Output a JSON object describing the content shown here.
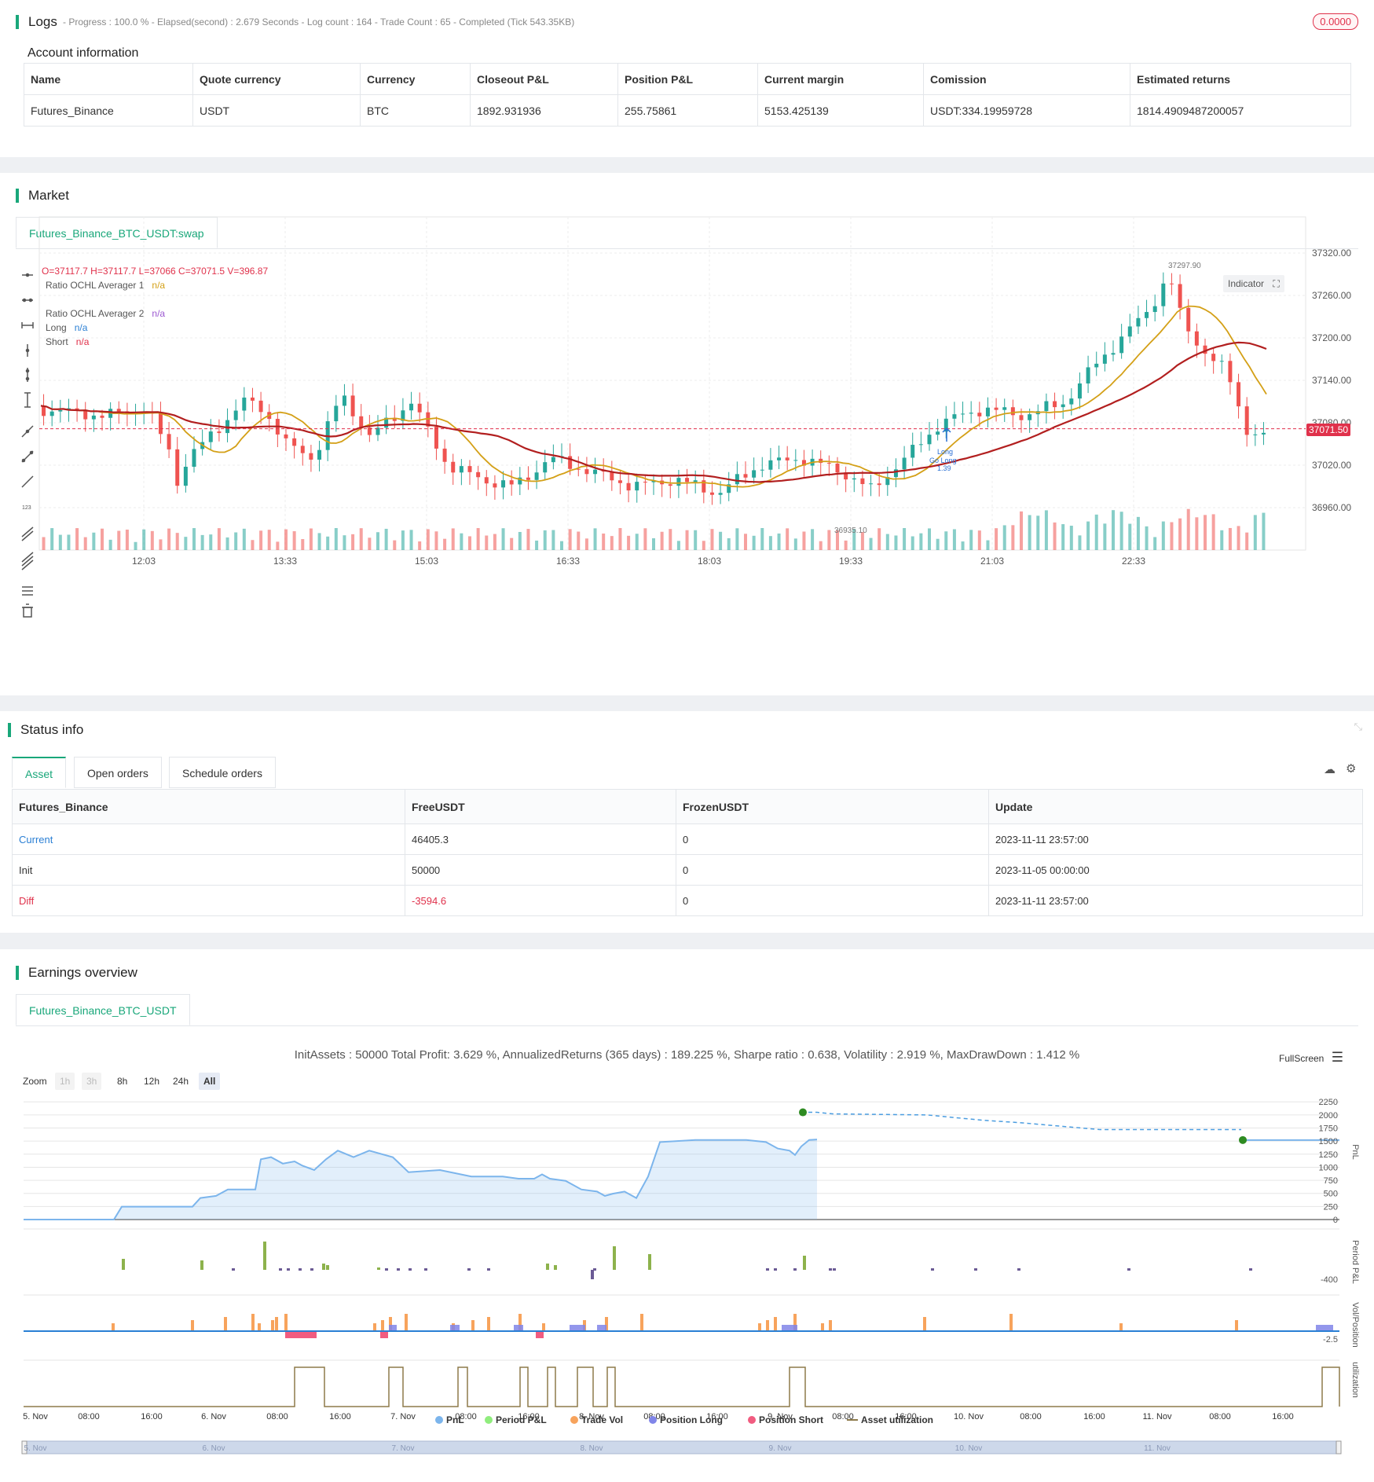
{
  "logs": {
    "title": "Logs",
    "summary": "- Progress : 100.0 % - Elapsed(second) : 2.679  Seconds - Log count : 164 - Trade Count : 65 - Completed (Tick 543.35KB)",
    "badge": "0.0000"
  },
  "account": {
    "title": "Account information",
    "headers": [
      "Name",
      "Quote currency",
      "Currency",
      "Closeout P&L",
      "Position P&L",
      "Current margin",
      "Comission",
      "Estimated returns"
    ],
    "row": [
      "Futures_Binance",
      "USDT",
      "BTC",
      "1892.931936",
      "255.75861",
      "5153.425139",
      "USDT:334.19959728",
      "1814.4909487200057"
    ]
  },
  "market": {
    "title": "Market",
    "tab": "Futures_Binance_BTC_USDT:swap",
    "ohlc": "O=37117.7 H=37117.7 L=37066 C=37071.5 V=396.87",
    "indicators": [
      {
        "name": "Ratio OCHL Averager 1",
        "value": "n/a",
        "color": "#d4a017"
      },
      {
        "name": "Ratio OCHL Averager 2",
        "value": "n/a",
        "color": "#9c59d1"
      },
      {
        "name": "Long",
        "value": "n/a",
        "color": "#2a7fd4"
      },
      {
        "name": "Short",
        "value": "n/a",
        "color": "#e0314b"
      }
    ],
    "indicator_btn": "Indicator",
    "price_label": "37071.50",
    "high_label": "37297.90",
    "low_label": "36935.10",
    "trade_marks": [
      "Long",
      "Go Long",
      "1.39"
    ],
    "y_ticks": [
      "37320.00",
      "37260.00",
      "37200.00",
      "37140.00",
      "37080.00",
      "37020.00",
      "36960.00"
    ],
    "x_ticks": [
      "12:03",
      "13:33",
      "15:03",
      "16:33",
      "18:03",
      "19:33",
      "21:03",
      "22:33"
    ],
    "colors": {
      "up": "#26a69a",
      "down": "#ef5350",
      "avg1": "#d4a017",
      "avg2": "#b21f1f"
    }
  },
  "status": {
    "title": "Status info",
    "tabs": [
      "Asset",
      "Open orders",
      "Schedule orders"
    ],
    "headers": [
      "Futures_Binance",
      "FreeUSDT",
      "FrozenUSDT",
      "Update"
    ],
    "rows": [
      [
        "Current",
        "46405.3",
        "0",
        "2023-11-11 23:57:00"
      ],
      [
        "Init",
        "50000",
        "0",
        "2023-11-05 00:00:00"
      ],
      [
        "Diff",
        "-3594.6",
        "0",
        "2023-11-11 23:57:00"
      ]
    ]
  },
  "earnings": {
    "title": "Earnings overview",
    "tab": "Futures_Binance_BTC_USDT",
    "summary": "InitAssets : 50000 Total Profit: 3.629 %, AnnualizedReturns (365 days) : 189.225 %, Sharpe ratio : 0.638, Volatility : 2.919 %, MaxDrawDown : 1.412 %",
    "fullscreen": "FullScreen",
    "zoom_label": "Zoom",
    "zoom_options": [
      "1h",
      "3h",
      "8h",
      "12h",
      "24h",
      "All"
    ],
    "pnl_ticks": [
      "2250",
      "2000",
      "1750",
      "1500",
      "1250",
      "1000",
      "750",
      "500",
      "250",
      "0"
    ],
    "period_tick": "-400",
    "vol_tick": "-2.5",
    "axis_titles": [
      "PnL",
      "Period P&L",
      "Vol/Position",
      "utilization"
    ],
    "x_ticks": [
      "5. Nov",
      "08:00",
      "16:00",
      "6. Nov",
      "08:00",
      "16:00",
      "7. Nov",
      "08:00",
      "16:00",
      "8. Nov",
      "08:00",
      "16:00",
      "9. Nov",
      "08:00",
      "16:00",
      "10. Nov",
      "08:00",
      "16:00",
      "11. Nov",
      "08:00",
      "16:00"
    ],
    "nav_ticks": [
      "5. Nov",
      "6. Nov",
      "7. Nov",
      "8. Nov",
      "9. Nov",
      "10. Nov",
      "11. Nov"
    ],
    "legend": [
      {
        "name": "PnL",
        "color": "#7cb5ec"
      },
      {
        "name": "Period P&L",
        "color": "#90ed7d"
      },
      {
        "name": "Trade Vol",
        "color": "#f7a35c"
      },
      {
        "name": "Position Long",
        "color": "#8085e9"
      },
      {
        "name": "Position Short",
        "color": "#f15c80"
      },
      {
        "name": "Asset utilization",
        "color": "#8d7a4a"
      }
    ]
  }
}
